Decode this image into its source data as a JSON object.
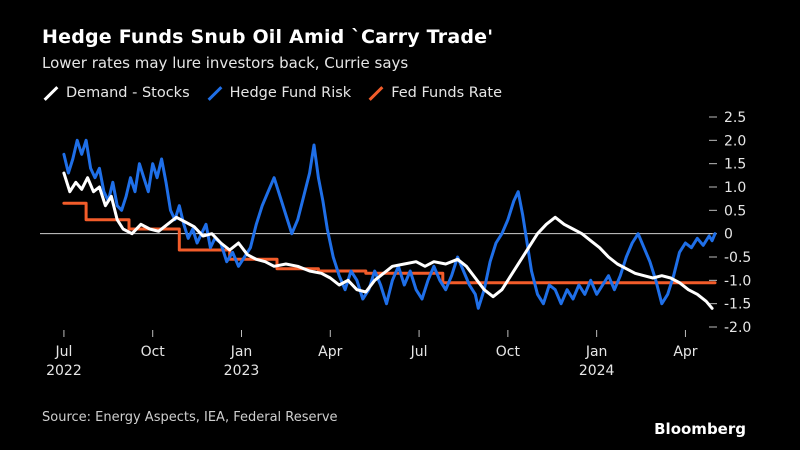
{
  "title": "Hedge Funds Snub Oil Amid `Carry Trade'",
  "subtitle": "Lower rates may lure investors back, Currie says",
  "source": "Source: Energy Aspects, IEA, Federal Reserve",
  "brand": "Bloomberg",
  "chart_data": {
    "type": "line",
    "title": "Hedge Funds Snub Oil Amid `Carry Trade'",
    "xlabel": "",
    "ylabel": "",
    "x_unit": "months since Jul 2022",
    "xlim": [
      -0.2,
      22.1
    ],
    "ylim": [
      -2.0,
      2.5
    ],
    "y_ticks": [
      {
        "value": 2.5,
        "label": "2.5"
      },
      {
        "value": 2.0,
        "label": "2.0"
      },
      {
        "value": 1.5,
        "label": "1.5"
      },
      {
        "value": 1.0,
        "label": "1.0"
      },
      {
        "value": 0.5,
        "label": "0.5"
      },
      {
        "value": 0,
        "label": "0"
      },
      {
        "value": -0.5,
        "label": "-0.5"
      },
      {
        "value": -1.0,
        "label": "-1.0"
      },
      {
        "value": -1.5,
        "label": "-1.5"
      },
      {
        "value": -2.0,
        "label": "-2.0"
      }
    ],
    "x_ticks": [
      {
        "value": 0,
        "label": "Jul",
        "year": "2022"
      },
      {
        "value": 3,
        "label": "Oct",
        "year": ""
      },
      {
        "value": 6,
        "label": "Jan",
        "year": "2023"
      },
      {
        "value": 9,
        "label": "Apr",
        "year": ""
      },
      {
        "value": 12,
        "label": "Jul",
        "year": ""
      },
      {
        "value": 15,
        "label": "Oct",
        "year": ""
      },
      {
        "value": 18,
        "label": "Jan",
        "year": "2024"
      },
      {
        "value": 21,
        "label": "Apr",
        "year": ""
      }
    ],
    "zero_line": 0,
    "series": [
      {
        "name": "Demand - Stocks",
        "color": "#ffffff",
        "points": [
          [
            0,
            1.3
          ],
          [
            0.2,
            0.9
          ],
          [
            0.4,
            1.1
          ],
          [
            0.6,
            0.95
          ],
          [
            0.8,
            1.2
          ],
          [
            1.0,
            0.9
          ],
          [
            1.2,
            1.0
          ],
          [
            1.4,
            0.6
          ],
          [
            1.6,
            0.8
          ],
          [
            1.8,
            0.3
          ],
          [
            2.0,
            0.1
          ],
          [
            2.3,
            0.0
          ],
          [
            2.6,
            0.2
          ],
          [
            2.9,
            0.1
          ],
          [
            3.2,
            0.05
          ],
          [
            3.5,
            0.2
          ],
          [
            3.8,
            0.35
          ],
          [
            4.1,
            0.25
          ],
          [
            4.4,
            0.15
          ],
          [
            4.7,
            -0.05
          ],
          [
            5.0,
            0.0
          ],
          [
            5.3,
            -0.2
          ],
          [
            5.6,
            -0.35
          ],
          [
            5.9,
            -0.2
          ],
          [
            6.2,
            -0.45
          ],
          [
            6.5,
            -0.55
          ],
          [
            6.8,
            -0.6
          ],
          [
            7.1,
            -0.7
          ],
          [
            7.5,
            -0.65
          ],
          [
            7.9,
            -0.7
          ],
          [
            8.3,
            -0.8
          ],
          [
            8.7,
            -0.85
          ],
          [
            9.0,
            -0.95
          ],
          [
            9.3,
            -1.1
          ],
          [
            9.6,
            -1.0
          ],
          [
            9.9,
            -1.2
          ],
          [
            10.2,
            -1.25
          ],
          [
            10.5,
            -1.0
          ],
          [
            10.8,
            -0.85
          ],
          [
            11.1,
            -0.7
          ],
          [
            11.5,
            -0.65
          ],
          [
            11.9,
            -0.6
          ],
          [
            12.2,
            -0.7
          ],
          [
            12.5,
            -0.6
          ],
          [
            12.9,
            -0.65
          ],
          [
            13.3,
            -0.55
          ],
          [
            13.6,
            -0.7
          ],
          [
            13.9,
            -0.95
          ],
          [
            14.2,
            -1.2
          ],
          [
            14.5,
            -1.35
          ],
          [
            14.8,
            -1.2
          ],
          [
            15.1,
            -0.9
          ],
          [
            15.4,
            -0.6
          ],
          [
            15.7,
            -0.3
          ],
          [
            16.0,
            0.0
          ],
          [
            16.3,
            0.2
          ],
          [
            16.6,
            0.35
          ],
          [
            16.9,
            0.2
          ],
          [
            17.2,
            0.1
          ],
          [
            17.5,
            0.0
          ],
          [
            17.8,
            -0.15
          ],
          [
            18.1,
            -0.3
          ],
          [
            18.4,
            -0.5
          ],
          [
            18.7,
            -0.65
          ],
          [
            19.0,
            -0.75
          ],
          [
            19.3,
            -0.85
          ],
          [
            19.6,
            -0.9
          ],
          [
            19.9,
            -0.95
          ],
          [
            20.2,
            -0.9
          ],
          [
            20.5,
            -0.95
          ],
          [
            20.8,
            -1.05
          ],
          [
            21.1,
            -1.2
          ],
          [
            21.4,
            -1.3
          ],
          [
            21.7,
            -1.45
          ],
          [
            21.9,
            -1.6
          ]
        ]
      },
      {
        "name": "Hedge Fund Risk",
        "color": "#1f6fe8",
        "points": [
          [
            0,
            1.7
          ],
          [
            0.15,
            1.3
          ],
          [
            0.3,
            1.6
          ],
          [
            0.45,
            2.0
          ],
          [
            0.6,
            1.7
          ],
          [
            0.75,
            2.0
          ],
          [
            0.9,
            1.4
          ],
          [
            1.05,
            1.2
          ],
          [
            1.2,
            1.4
          ],
          [
            1.35,
            0.9
          ],
          [
            1.5,
            0.7
          ],
          [
            1.65,
            1.1
          ],
          [
            1.8,
            0.6
          ],
          [
            1.95,
            0.5
          ],
          [
            2.1,
            0.8
          ],
          [
            2.25,
            1.2
          ],
          [
            2.4,
            0.9
          ],
          [
            2.55,
            1.5
          ],
          [
            2.7,
            1.2
          ],
          [
            2.85,
            0.9
          ],
          [
            3.0,
            1.5
          ],
          [
            3.15,
            1.2
          ],
          [
            3.3,
            1.6
          ],
          [
            3.45,
            1.1
          ],
          [
            3.6,
            0.5
          ],
          [
            3.75,
            0.3
          ],
          [
            3.9,
            0.6
          ],
          [
            4.05,
            0.2
          ],
          [
            4.2,
            -0.1
          ],
          [
            4.35,
            0.1
          ],
          [
            4.5,
            -0.2
          ],
          [
            4.65,
            0.0
          ],
          [
            4.8,
            0.2
          ],
          [
            4.95,
            -0.3
          ],
          [
            5.1,
            -0.1
          ],
          [
            5.3,
            -0.2
          ],
          [
            5.5,
            -0.6
          ],
          [
            5.7,
            -0.4
          ],
          [
            5.9,
            -0.7
          ],
          [
            6.1,
            -0.5
          ],
          [
            6.3,
            -0.3
          ],
          [
            6.5,
            0.2
          ],
          [
            6.7,
            0.6
          ],
          [
            6.9,
            0.9
          ],
          [
            7.1,
            1.2
          ],
          [
            7.3,
            0.8
          ],
          [
            7.5,
            0.4
          ],
          [
            7.7,
            0.0
          ],
          [
            7.9,
            0.3
          ],
          [
            8.1,
            0.8
          ],
          [
            8.3,
            1.3
          ],
          [
            8.45,
            1.9
          ],
          [
            8.6,
            1.2
          ],
          [
            8.75,
            0.7
          ],
          [
            8.9,
            0.1
          ],
          [
            9.1,
            -0.5
          ],
          [
            9.3,
            -0.9
          ],
          [
            9.5,
            -1.2
          ],
          [
            9.7,
            -0.8
          ],
          [
            9.9,
            -1.0
          ],
          [
            10.1,
            -1.4
          ],
          [
            10.3,
            -1.2
          ],
          [
            10.5,
            -0.8
          ],
          [
            10.7,
            -1.1
          ],
          [
            10.9,
            -1.5
          ],
          [
            11.1,
            -1.0
          ],
          [
            11.3,
            -0.7
          ],
          [
            11.5,
            -1.1
          ],
          [
            11.7,
            -0.8
          ],
          [
            11.9,
            -1.2
          ],
          [
            12.1,
            -1.4
          ],
          [
            12.3,
            -1.0
          ],
          [
            12.5,
            -0.7
          ],
          [
            12.7,
            -1.0
          ],
          [
            12.9,
            -1.2
          ],
          [
            13.1,
            -0.9
          ],
          [
            13.3,
            -0.5
          ],
          [
            13.5,
            -0.8
          ],
          [
            13.7,
            -1.1
          ],
          [
            13.9,
            -1.3
          ],
          [
            14.0,
            -1.6
          ],
          [
            14.2,
            -1.2
          ],
          [
            14.4,
            -0.6
          ],
          [
            14.6,
            -0.2
          ],
          [
            14.8,
            0.0
          ],
          [
            15.0,
            0.3
          ],
          [
            15.2,
            0.7
          ],
          [
            15.35,
            0.9
          ],
          [
            15.5,
            0.4
          ],
          [
            15.65,
            -0.2
          ],
          [
            15.8,
            -0.8
          ],
          [
            16.0,
            -1.3
          ],
          [
            16.2,
            -1.5
          ],
          [
            16.4,
            -1.1
          ],
          [
            16.6,
            -1.2
          ],
          [
            16.8,
            -1.5
          ],
          [
            17.0,
            -1.2
          ],
          [
            17.2,
            -1.4
          ],
          [
            17.4,
            -1.1
          ],
          [
            17.6,
            -1.3
          ],
          [
            17.8,
            -1.0
          ],
          [
            18.0,
            -1.3
          ],
          [
            18.2,
            -1.1
          ],
          [
            18.4,
            -0.9
          ],
          [
            18.6,
            -1.2
          ],
          [
            18.8,
            -0.9
          ],
          [
            19.0,
            -0.5
          ],
          [
            19.2,
            -0.2
          ],
          [
            19.4,
            0.0
          ],
          [
            19.6,
            -0.3
          ],
          [
            19.8,
            -0.6
          ],
          [
            20.0,
            -1.0
          ],
          [
            20.2,
            -1.5
          ],
          [
            20.4,
            -1.3
          ],
          [
            20.6,
            -0.9
          ],
          [
            20.8,
            -0.4
          ],
          [
            21.0,
            -0.2
          ],
          [
            21.2,
            -0.3
          ],
          [
            21.4,
            -0.1
          ],
          [
            21.6,
            -0.25
          ],
          [
            21.8,
            -0.05
          ],
          [
            21.9,
            -0.15
          ],
          [
            22.0,
            0.0
          ]
        ]
      },
      {
        "name": "Fed Funds Rate",
        "color": "#f25c2a",
        "points": [
          [
            0,
            0.65
          ],
          [
            0.75,
            0.65
          ],
          [
            0.75,
            0.3
          ],
          [
            2.2,
            0.3
          ],
          [
            2.2,
            0.1
          ],
          [
            3.9,
            0.1
          ],
          [
            3.9,
            -0.35
          ],
          [
            5.6,
            -0.35
          ],
          [
            5.6,
            -0.55
          ],
          [
            7.2,
            -0.55
          ],
          [
            7.2,
            -0.75
          ],
          [
            8.6,
            -0.75
          ],
          [
            8.6,
            -0.8
          ],
          [
            10.2,
            -0.8
          ],
          [
            10.2,
            -0.85
          ],
          [
            12.8,
            -0.85
          ],
          [
            12.8,
            -1.05
          ],
          [
            22.0,
            -1.05
          ]
        ]
      }
    ]
  }
}
